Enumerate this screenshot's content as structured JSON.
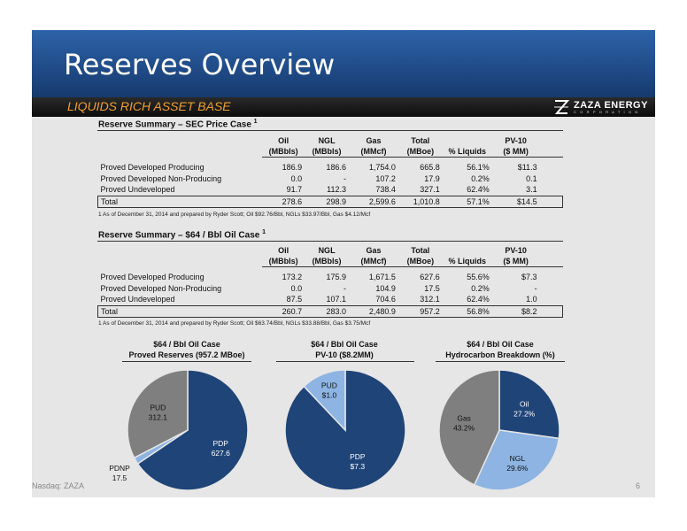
{
  "title": "Reserves Overview",
  "subtitle": "LIQUIDS RICH ASSET BASE",
  "logo": {
    "name": "ZAZA ENERGY",
    "sub": "C O R P O R A T I O N"
  },
  "columns": {
    "oil": "Oil",
    "oil_unit": "(MBbls)",
    "ngl": "NGL",
    "ngl_unit": "(MBbls)",
    "gas": "Gas",
    "gas_unit": "(MMcf)",
    "total": "Total",
    "total_unit": "(MBoe)",
    "liq": "% Liquids",
    "pv": "PV-10",
    "pv_unit": "($ MM)"
  },
  "table1": {
    "title": "Reserve Summary – SEC Price Case",
    "sup": "1",
    "rows": [
      {
        "label": "Proved Developed Producing",
        "oil": "186.9",
        "ngl": "186.6",
        "gas": "1,754.0",
        "total": "665.8",
        "liq": "56.1%",
        "pv": "$11.3"
      },
      {
        "label": "Proved Developed Non-Producing",
        "oil": "0.0",
        "ngl": "-",
        "gas": "107.2",
        "total": "17.9",
        "liq": "0.2%",
        "pv": "0.1"
      },
      {
        "label": "Proved Undeveloped",
        "oil": "91.7",
        "ngl": "112.3",
        "gas": "738.4",
        "total": "327.1",
        "liq": "62.4%",
        "pv": "3.1"
      }
    ],
    "total": {
      "label": "Total",
      "oil": "278.6",
      "ngl": "298.9",
      "gas": "2,599.6",
      "total": "1,010.8",
      "liq": "57.1%",
      "pv": "$14.5"
    },
    "footnote": "1 As of December 31, 2014 and prepared by Ryder Scott; Oil $92.76/Bbl, NGLs $33.97/Bbl, Gas $4.12/Mcf"
  },
  "table2": {
    "title": "Reserve Summary – $64 / Bbl Oil Case",
    "sup": "1",
    "rows": [
      {
        "label": "Proved Developed Producing",
        "oil": "173.2",
        "ngl": "175.9",
        "gas": "1,671.5",
        "total": "627.6",
        "liq": "55.6%",
        "pv": "$7.3"
      },
      {
        "label": "Proved Developed Non-Producing",
        "oil": "0.0",
        "ngl": "-",
        "gas": "104.9",
        "total": "17.5",
        "liq": "0.2%",
        "pv": "-"
      },
      {
        "label": "Proved Undeveloped",
        "oil": "87.5",
        "ngl": "107.1",
        "gas": "704.6",
        "total": "312.1",
        "liq": "62.4%",
        "pv": "1.0"
      }
    ],
    "total": {
      "label": "Total",
      "oil": "260.7",
      "ngl": "283.0",
      "gas": "2,480.9",
      "total": "957.2",
      "liq": "56.8%",
      "pv": "$8.2"
    },
    "footnote": "1 As of December 31, 2014 and prepared by Ryder Scott; Oil $63.74/Bbl, NGLs $33.88/Bbl, Gas $3.75/Mcf"
  },
  "chart_data": [
    {
      "type": "pie",
      "title": "$64 / Bbl Oil Case",
      "subtitle": "Proved Reserves (957.2 MBoe)",
      "slices": [
        {
          "name": "PDP",
          "value": 627.6,
          "label": "627.6",
          "color": "#1f4478",
          "text_color": "#ffffff"
        },
        {
          "name": "PDNP",
          "value": 17.5,
          "label": "17.5",
          "color": "#8db4e2",
          "text_color": "#111111"
        },
        {
          "name": "PUD",
          "value": 312.1,
          "label": "312.1",
          "color": "#7f7f7f",
          "text_color": "#111111"
        }
      ]
    },
    {
      "type": "pie",
      "title": "$64 / Bbl Oil Case",
      "subtitle": "PV-10 ($8.2MM)",
      "slices": [
        {
          "name": "PDP",
          "value": 7.3,
          "label": "$7.3",
          "color": "#1f4478",
          "text_color": "#ffffff"
        },
        {
          "name": "PUD",
          "value": 1.0,
          "label": "$1.0",
          "color": "#8db4e2",
          "text_color": "#111111"
        }
      ]
    },
    {
      "type": "pie",
      "title": "$64 / Bbl Oil Case",
      "subtitle": "Hydrocarbon Breakdown (%)",
      "slices": [
        {
          "name": "Oil",
          "value": 27.2,
          "label": "27.2%",
          "color": "#1f4478",
          "text_color": "#ffffff"
        },
        {
          "name": "NGL",
          "value": 29.6,
          "label": "29.6%",
          "color": "#8db4e2",
          "text_color": "#111111"
        },
        {
          "name": "Gas",
          "value": 43.2,
          "label": "43.2%",
          "color": "#7f7f7f",
          "text_color": "#111111"
        }
      ]
    }
  ],
  "footer": {
    "left": "Nasdaq: ZAZA",
    "page": "6"
  }
}
